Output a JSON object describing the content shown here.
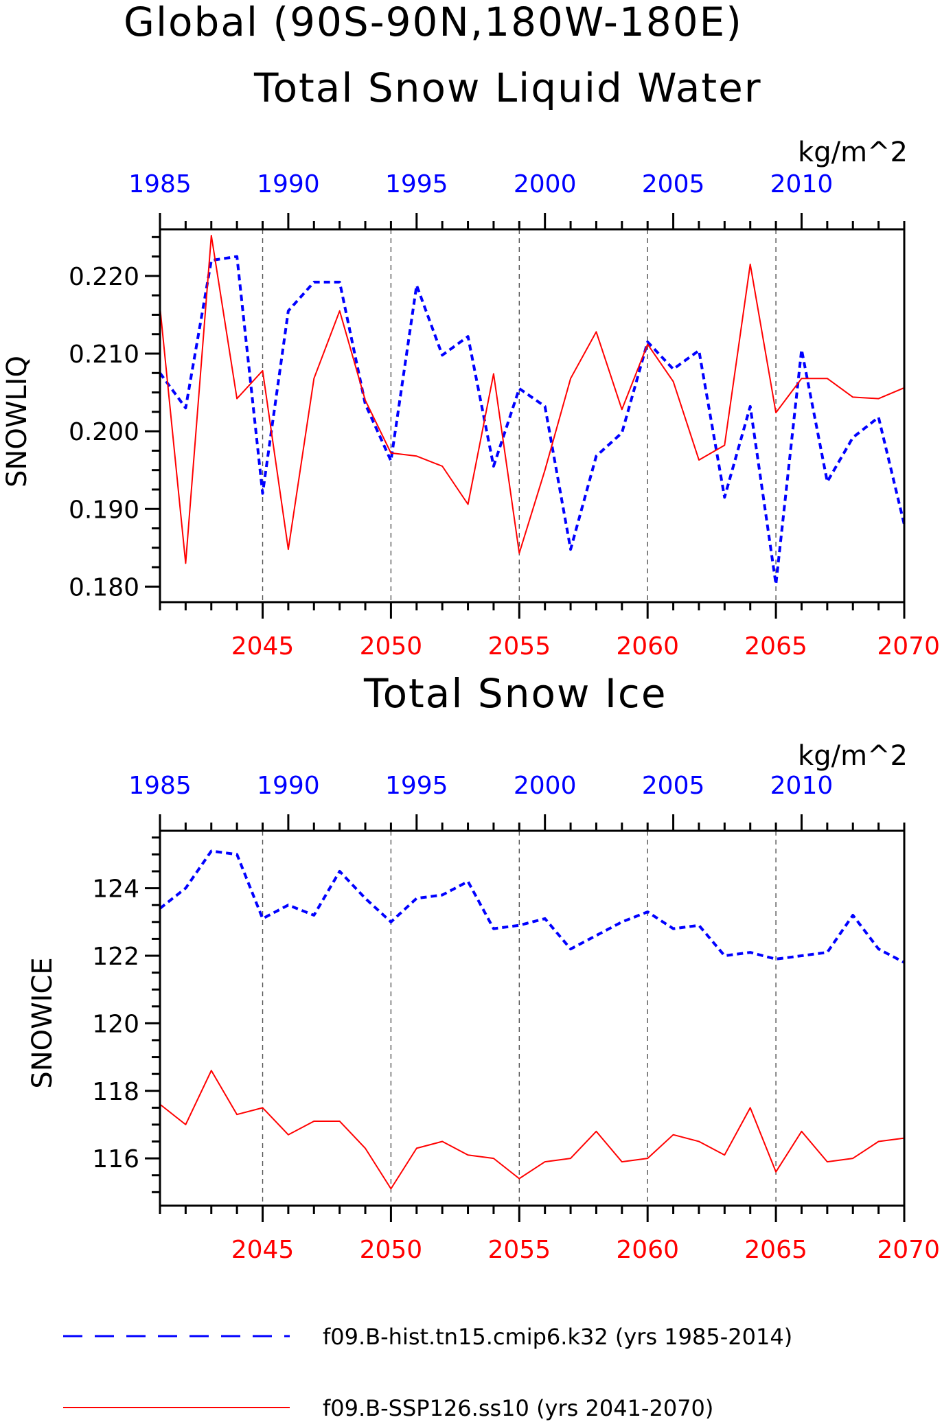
{
  "page_title": "Global (90S-90N,180W-180E)",
  "legend": [
    {
      "label": "f09.B-hist.tn15.cmip6.k32 (yrs 1985-2014)",
      "color": "#0000ff",
      "style": "dashed"
    },
    {
      "label": "f09.B-SSP126.ss10 (yrs 2041-2070)",
      "color": "#ff0000",
      "style": "solid"
    }
  ],
  "chart_data": [
    {
      "type": "line",
      "title": "Total Snow Liquid Water",
      "units": "kg/m^2",
      "ylabel": "SNOWLIQ",
      "ylim": [
        0.178,
        0.226
      ],
      "ytick_labels": [
        "0.180",
        "0.190",
        "0.200",
        "0.210",
        "0.220"
      ],
      "ytick_values": [
        0.18,
        0.19,
        0.2,
        0.21,
        0.22
      ],
      "top_axis": {
        "color": "#0000ff",
        "range": [
          1985,
          2014
        ],
        "tick_labels": [
          "1985",
          "1990",
          "1995",
          "2000",
          "2005",
          "2010"
        ]
      },
      "bottom_axis": {
        "color": "#ff0000",
        "range": [
          2041,
          2070
        ],
        "tick_labels": [
          "2045",
          "2050",
          "2055",
          "2060",
          "2065",
          "2070"
        ]
      },
      "series": [
        {
          "name": "f09.B-hist.tn15.cmip6.k32",
          "color": "#0000ff",
          "style": "dashed",
          "axis": "top",
          "x": [
            1985,
            1986,
            1987,
            1988,
            1989,
            1990,
            1991,
            1992,
            1993,
            1994,
            1995,
            1996,
            1997,
            1998,
            1999,
            2000,
            2001,
            2002,
            2003,
            2004,
            2005,
            2006,
            2007,
            2008,
            2009,
            2010,
            2011,
            2012,
            2013,
            2014
          ],
          "values": [
            0.2075,
            0.203,
            0.222,
            0.2225,
            0.192,
            0.2155,
            0.2192,
            0.2192,
            0.2035,
            0.1962,
            0.2188,
            0.2098,
            0.2122,
            0.1955,
            0.2055,
            0.2032,
            0.1848,
            0.1968,
            0.1998,
            0.2115,
            0.208,
            0.2104,
            0.1915,
            0.2032,
            0.1803,
            0.2105,
            0.1935,
            0.1992,
            0.2018,
            0.188
          ]
        },
        {
          "name": "f09.B-SSP126.ss10",
          "color": "#ff0000",
          "style": "solid",
          "axis": "bottom",
          "x": [
            2041,
            2042,
            2043,
            2044,
            2045,
            2046,
            2047,
            2048,
            2049,
            2050,
            2051,
            2052,
            2053,
            2054,
            2055,
            2056,
            2057,
            2058,
            2059,
            2060,
            2061,
            2062,
            2063,
            2064,
            2065,
            2066,
            2067,
            2068,
            2069,
            2070
          ],
          "values": [
            0.216,
            0.183,
            0.2252,
            0.2042,
            0.2078,
            0.1848,
            0.2068,
            0.2155,
            0.204,
            0.1972,
            0.1968,
            0.1955,
            0.1906,
            0.2074,
            0.1843,
            0.195,
            0.2068,
            0.2128,
            0.2028,
            0.2112,
            0.2064,
            0.1963,
            0.1982,
            0.2215,
            0.2024,
            0.2068,
            0.2068,
            0.2044,
            0.2042,
            0.2056
          ]
        }
      ]
    },
    {
      "type": "line",
      "title": "Total Snow Ice",
      "units": "kg/m^2",
      "ylabel": "SNOWICE",
      "ylim": [
        114.6,
        125.7
      ],
      "ytick_labels": [
        "116",
        "118",
        "120",
        "122",
        "124"
      ],
      "ytick_values": [
        116,
        118,
        120,
        122,
        124
      ],
      "top_axis": {
        "color": "#0000ff",
        "range": [
          1985,
          2014
        ],
        "tick_labels": [
          "1985",
          "1990",
          "1995",
          "2000",
          "2005",
          "2010"
        ]
      },
      "bottom_axis": {
        "color": "#ff0000",
        "range": [
          2041,
          2070
        ],
        "tick_labels": [
          "2045",
          "2050",
          "2055",
          "2060",
          "2065",
          "2070"
        ]
      },
      "series": [
        {
          "name": "f09.B-hist.tn15.cmip6.k32",
          "color": "#0000ff",
          "style": "dashed",
          "axis": "top",
          "x": [
            1985,
            1986,
            1987,
            1988,
            1989,
            1990,
            1991,
            1992,
            1993,
            1994,
            1995,
            1996,
            1997,
            1998,
            1999,
            2000,
            2001,
            2002,
            2003,
            2004,
            2005,
            2006,
            2007,
            2008,
            2009,
            2010,
            2011,
            2012,
            2013,
            2014
          ],
          "values": [
            123.4,
            124.0,
            125.1,
            125.0,
            123.1,
            123.5,
            123.2,
            124.5,
            123.7,
            123.0,
            123.7,
            123.8,
            124.2,
            122.8,
            122.9,
            123.1,
            122.2,
            122.6,
            123.0,
            123.3,
            122.8,
            122.9,
            122.0,
            122.1,
            121.9,
            122.0,
            122.1,
            123.2,
            122.2,
            121.8
          ]
        },
        {
          "name": "f09.B-SSP126.ss10",
          "color": "#ff0000",
          "style": "solid",
          "axis": "bottom",
          "x": [
            2041,
            2042,
            2043,
            2044,
            2045,
            2046,
            2047,
            2048,
            2049,
            2050,
            2051,
            2052,
            2053,
            2054,
            2055,
            2056,
            2057,
            2058,
            2059,
            2060,
            2061,
            2062,
            2063,
            2064,
            2065,
            2066,
            2067,
            2068,
            2069,
            2070
          ],
          "values": [
            117.6,
            117.0,
            118.6,
            117.3,
            117.5,
            116.7,
            117.1,
            117.1,
            116.3,
            115.1,
            116.3,
            116.5,
            116.1,
            116.0,
            115.4,
            115.9,
            116.0,
            116.8,
            115.9,
            116.0,
            116.7,
            116.5,
            116.1,
            117.5,
            115.6,
            116.8,
            115.9,
            116.0,
            116.5,
            116.6
          ]
        }
      ]
    }
  ]
}
